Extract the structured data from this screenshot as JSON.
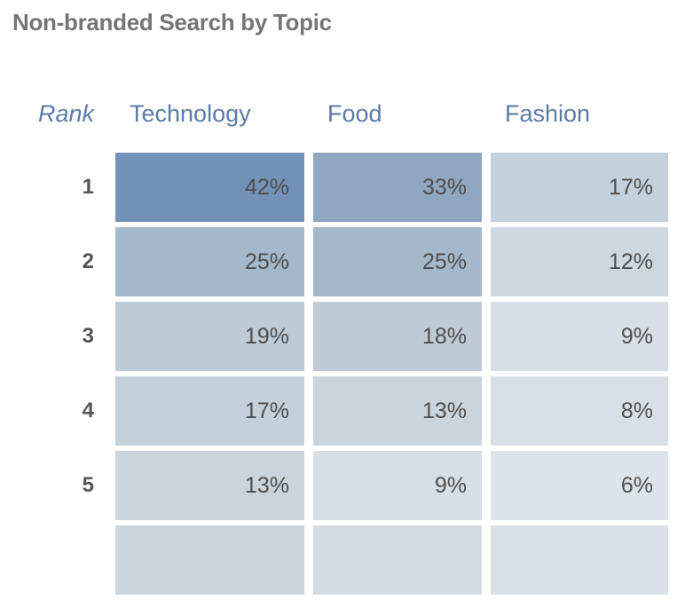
{
  "colors": {
    "background": "#ffffff",
    "title_text": "#757575",
    "header_text": "#5b7ca7",
    "rank_text": "#555555",
    "cell_text": "#4e4e4e"
  },
  "chart_data": {
    "type": "heatmap",
    "title": "Non-branded Search by Topic",
    "rank_header": "Rank",
    "columns": [
      "Technology",
      "Food",
      "Fashion"
    ],
    "ranks": [
      1,
      2,
      3,
      4,
      5
    ],
    "series": [
      {
        "name": "Technology",
        "values": [
          42,
          25,
          19,
          17,
          13
        ]
      },
      {
        "name": "Food",
        "values": [
          33,
          25,
          18,
          13,
          9
        ]
      },
      {
        "name": "Fashion",
        "values": [
          17,
          12,
          9,
          8,
          6
        ]
      }
    ],
    "value_format": "percent",
    "color_scale": {
      "min_value": 6,
      "min_color": "#dde4e9",
      "max_value": 42,
      "max_color": "#7492b7"
    },
    "rows": [
      {
        "rank": "1",
        "cells": [
          {
            "label": "42%",
            "value": 42,
            "color": "#7492b7"
          },
          {
            "label": "33%",
            "value": 33,
            "color": "#90a7c2"
          },
          {
            "label": "17%",
            "value": 17,
            "color": "#c4d0da"
          }
        ]
      },
      {
        "rank": "2",
        "cells": [
          {
            "label": "25%",
            "value": 25,
            "color": "#a4b8cb"
          },
          {
            "label": "25%",
            "value": 25,
            "color": "#a4b8cb"
          },
          {
            "label": "12%",
            "value": 12,
            "color": "#ccd7df"
          }
        ]
      },
      {
        "rank": "3",
        "cells": [
          {
            "label": "19%",
            "value": 19,
            "color": "#bccbd6"
          },
          {
            "label": "18%",
            "value": 18,
            "color": "#becad6"
          },
          {
            "label": "9%",
            "value": 9,
            "color": "#d7dee4"
          }
        ]
      },
      {
        "rank": "4",
        "cells": [
          {
            "label": "17%",
            "value": 17,
            "color": "#c4d0da"
          },
          {
            "label": "13%",
            "value": 13,
            "color": "#c9d4dc"
          },
          {
            "label": "8%",
            "value": 8,
            "color": "#d9e0e5"
          }
        ]
      },
      {
        "rank": "5",
        "cells": [
          {
            "label": "13%",
            "value": 13,
            "color": "#c9d4dc"
          },
          {
            "label": "9%",
            "value": 9,
            "color": "#d7dee4"
          },
          {
            "label": "6%",
            "value": 6,
            "color": "#dde4e9"
          }
        ]
      }
    ],
    "partial_row_colors": [
      "#ccd6dd",
      "#d4dce2",
      "#dae1e6"
    ]
  }
}
